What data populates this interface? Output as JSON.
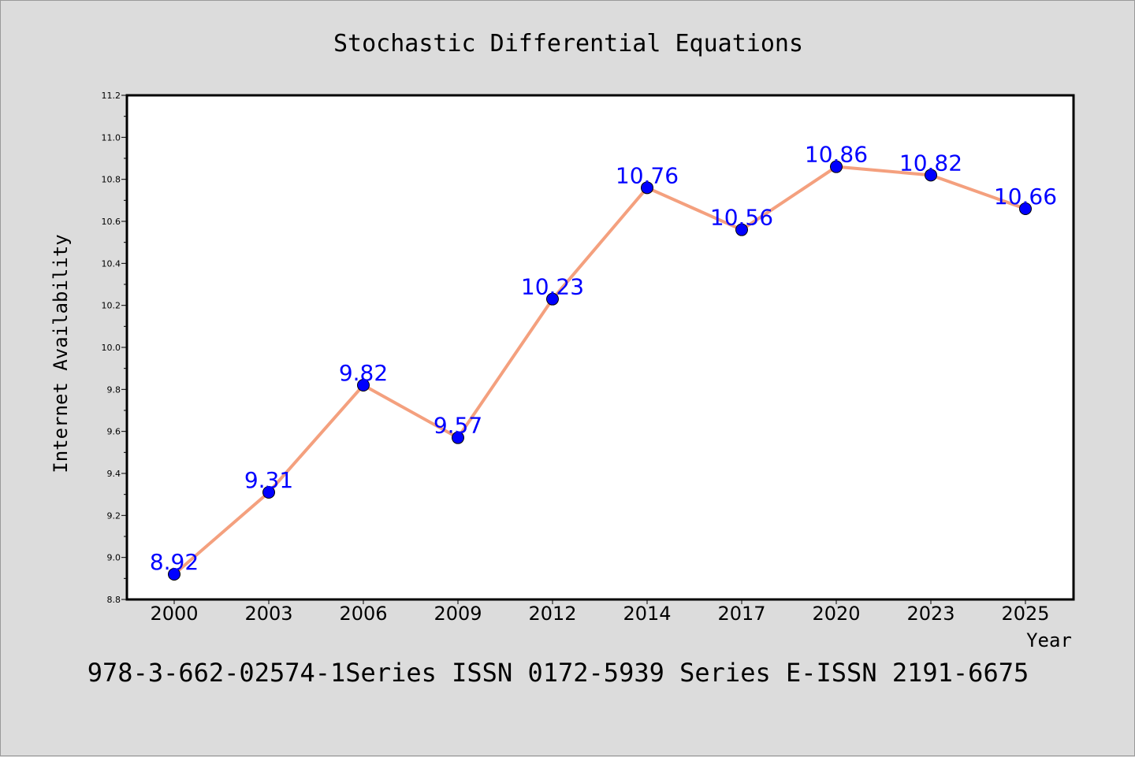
{
  "footer_text": "978-3-662-02574-1Series ISSN 0172-5939 Series E-ISSN 2191-6675",
  "colors": {
    "background": "#dcdcdc",
    "plot_area": "#ffffff",
    "line": "#f4a07e",
    "marker": "#0000ff",
    "data_label": "#0000ff"
  },
  "chart_data": {
    "type": "line",
    "title": "Stochastic Differential Equations",
    "xlabel": "Year",
    "ylabel": "Internet Availability",
    "categories": [
      "2000",
      "2003",
      "2006",
      "2009",
      "2012",
      "2014",
      "2017",
      "2020",
      "2023",
      "2025"
    ],
    "series": [
      {
        "values": [
          8.92,
          9.31,
          9.82,
          9.57,
          10.23,
          10.76,
          10.56,
          10.86,
          10.82,
          10.66
        ]
      }
    ],
    "data_labels": [
      "8.92",
      "9.31",
      "9.82",
      "9.57",
      "10.23",
      "10.76",
      "10.56",
      "10.86",
      "10.82",
      "10.66"
    ],
    "ylim": [
      8.8,
      11.2
    ],
    "yticks": [
      "8.8",
      "9.0",
      "9.2",
      "9.4",
      "9.6",
      "9.8",
      "10.0",
      "10.2",
      "10.4",
      "10.6",
      "10.8",
      "11.0",
      "11.2"
    ],
    "grid": false,
    "legend": "none"
  }
}
